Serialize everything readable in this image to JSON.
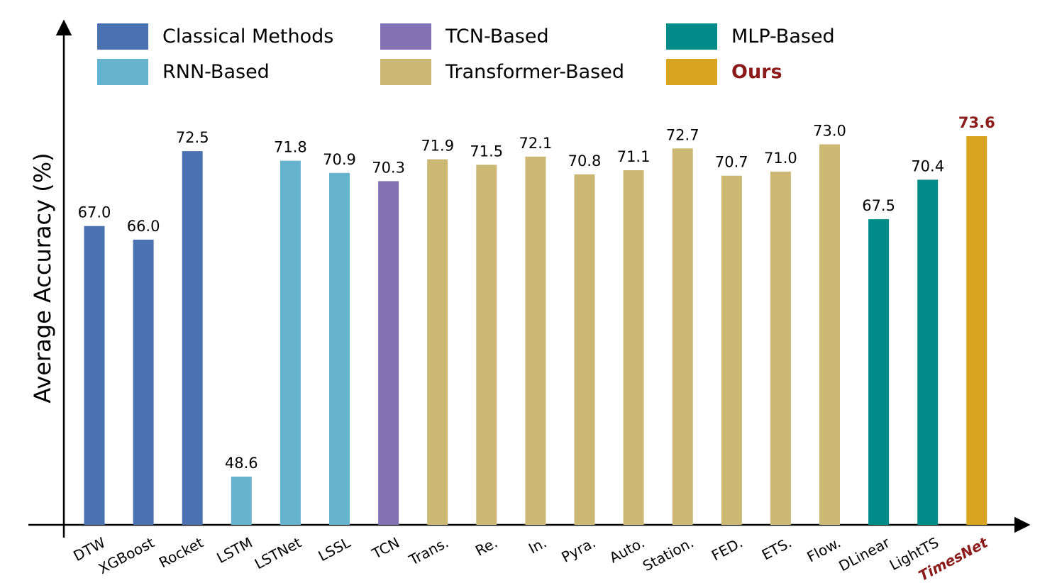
{
  "chart_data": {
    "type": "bar",
    "ylabel": "Average Accuracy (%)",
    "xlabel": "",
    "ylim": [
      38,
      78
    ],
    "grid": false,
    "legend": {
      "placement": "top",
      "columns": 3
    },
    "groups": [
      {
        "key": "classical",
        "name": "Classical Methods",
        "color": "#4a72b0",
        "highlight": false
      },
      {
        "key": "rnn",
        "name": "RNN-Based",
        "color": "#65b3cf",
        "highlight": false
      },
      {
        "key": "tcn",
        "name": "TCN-Based",
        "color": "#8272b3",
        "highlight": false
      },
      {
        "key": "transformer",
        "name": "Transformer-Based",
        "color": "#cbb874",
        "highlight": false
      },
      {
        "key": "mlp",
        "name": "MLP-Based",
        "color": "#008b8b",
        "highlight": false
      },
      {
        "key": "ours",
        "name": "Ours",
        "color": "#d9a41f",
        "highlight": true
      }
    ],
    "bars": [
      {
        "category": "DTW",
        "value": 67.0,
        "label": "67.0",
        "group": "classical"
      },
      {
        "category": "XGBoost",
        "value": 66.0,
        "label": "66.0",
        "group": "classical"
      },
      {
        "category": "Rocket",
        "value": 72.5,
        "label": "72.5",
        "group": "classical"
      },
      {
        "category": "LSTM",
        "value": 48.6,
        "label": "48.6",
        "group": "rnn"
      },
      {
        "category": "LSTNet",
        "value": 71.8,
        "label": "71.8",
        "group": "rnn"
      },
      {
        "category": "LSSL",
        "value": 70.9,
        "label": "70.9",
        "group": "rnn"
      },
      {
        "category": "TCN",
        "value": 70.3,
        "label": "70.3",
        "group": "tcn"
      },
      {
        "category": "Trans.",
        "value": 71.9,
        "label": "71.9",
        "group": "transformer"
      },
      {
        "category": "Re.",
        "value": 71.5,
        "label": "71.5",
        "group": "transformer"
      },
      {
        "category": "In.",
        "value": 72.1,
        "label": "72.1",
        "group": "transformer"
      },
      {
        "category": "Pyra.",
        "value": 70.8,
        "label": "70.8",
        "group": "transformer"
      },
      {
        "category": "Auto.",
        "value": 71.1,
        "label": "71.1",
        "group": "transformer"
      },
      {
        "category": "Station.",
        "value": 72.7,
        "label": "72.7",
        "group": "transformer"
      },
      {
        "category": "FED.",
        "value": 70.7,
        "label": "70.7",
        "group": "transformer"
      },
      {
        "category": "ETS.",
        "value": 71.0,
        "label": "71.0",
        "group": "transformer"
      },
      {
        "category": "Flow.",
        "value": 73.0,
        "label": "73.0",
        "group": "transformer"
      },
      {
        "category": "DLinear",
        "value": 67.5,
        "label": "67.5",
        "group": "mlp"
      },
      {
        "category": "LightTS",
        "value": 70.4,
        "label": "70.4",
        "group": "mlp"
      },
      {
        "category": "TimesNet",
        "value": 73.6,
        "label": "73.6",
        "group": "ours"
      }
    ]
  }
}
